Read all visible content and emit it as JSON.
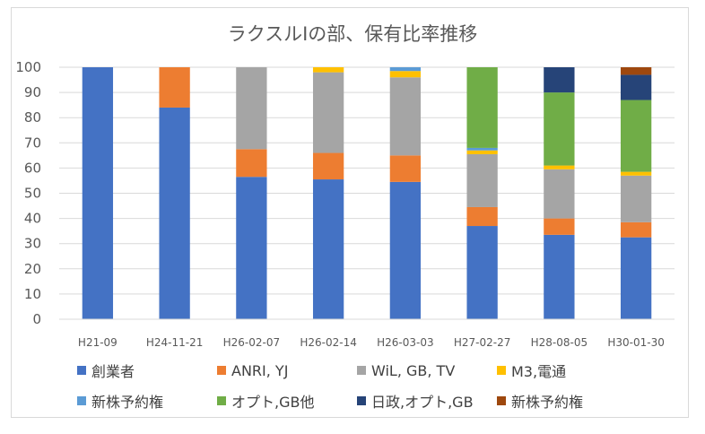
{
  "chart_data": {
    "type": "bar",
    "stacked": true,
    "title": "ラクスルIの部、保有比率推移",
    "xlabel": "",
    "ylabel": "",
    "ylim": [
      0,
      100
    ],
    "yticks": [
      0,
      10,
      20,
      30,
      40,
      50,
      60,
      70,
      80,
      90,
      100
    ],
    "grid": true,
    "legend": "bottom",
    "categories": [
      "H21-09",
      "H24-11-21",
      "H26-02-07",
      "H26-02-14",
      "H26-03-03",
      "H27-02-27",
      "H28-08-05",
      "H30-01-30"
    ],
    "series": [
      {
        "name": "創業者",
        "color": "#4472c4",
        "values": [
          100,
          84,
          56.5,
          55.5,
          54.5,
          37,
          33.5,
          32.5
        ]
      },
      {
        "name": "ANRI, YJ",
        "color": "#ed7d31",
        "values": [
          0,
          16,
          11,
          10.5,
          10.5,
          7.5,
          6.5,
          6
        ]
      },
      {
        "name": "WiL, GB, TV",
        "color": "#a5a5a5",
        "values": [
          0,
          0,
          32.5,
          32,
          31,
          21,
          19.5,
          18.5
        ]
      },
      {
        "name": "M3,電通",
        "color": "#ffc000",
        "values": [
          0,
          0,
          0,
          2,
          2.5,
          1.5,
          1.5,
          1.5
        ]
      },
      {
        "name": "新株予約権",
        "color": "#5b9bd5",
        "values": [
          0,
          0,
          0,
          0,
          1.5,
          1,
          0,
          0
        ]
      },
      {
        "name": "オプト,GB他",
        "color": "#70ad47",
        "values": [
          0,
          0,
          0,
          0,
          0,
          32,
          29,
          28.5
        ]
      },
      {
        "name": "日政,オプト,GB",
        "color": "#264478",
        "values": [
          0,
          0,
          0,
          0,
          0,
          0,
          10,
          10
        ]
      },
      {
        "name": "新株予約権",
        "color": "#9e480e",
        "values": [
          0,
          0,
          0,
          0,
          0,
          0,
          0,
          3
        ]
      }
    ]
  }
}
